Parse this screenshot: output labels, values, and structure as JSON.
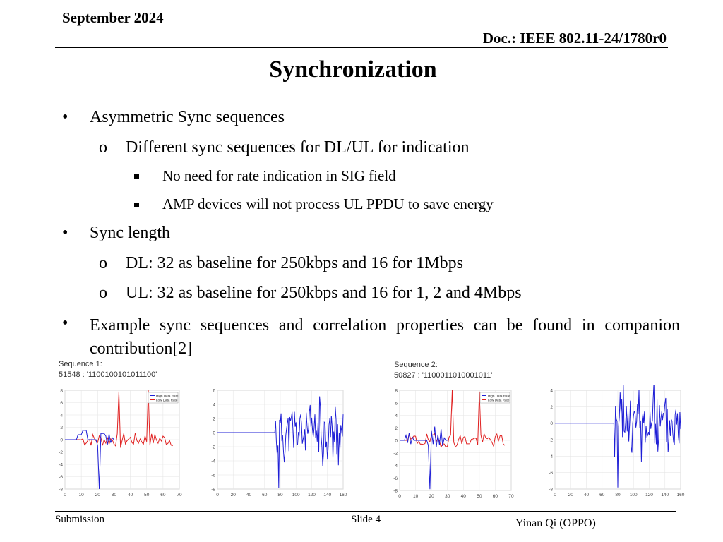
{
  "header": {
    "date": "September 2024",
    "doc": "Doc.: IEEE 802.11-24/1780r0"
  },
  "title": "Synchronization",
  "bullets": {
    "asym": {
      "marker": "•",
      "text": "Asymmetric Sync sequences",
      "sub": {
        "marker": "o",
        "text": "Different sync sequences for DL/UL for indication"
      },
      "subsub": [
        "No need for rate indication in SIG field",
        "AMP devices will not process UL PPDU to save energy"
      ]
    },
    "length": {
      "marker": "•",
      "text": "Sync length",
      "sub": [
        {
          "marker": "o",
          "text": "DL: 32 as baseline for 250kbps and 16 for 1Mbps"
        },
        {
          "marker": "o",
          "text": "UL: 32 as baseline for 250kbps and 16 for 1, 2 and 4Mbps"
        }
      ]
    },
    "example": {
      "marker": "•",
      "text": "Example sync sequences and correlation properties can be found in companion contribution[2]"
    }
  },
  "figures": {
    "seq1": {
      "label": "Sequence 1:",
      "value": "51548 :  '1100100101011100'"
    },
    "seq2": {
      "label": "Sequence 2:",
      "value": "50827 :  '1100011010001011'"
    },
    "legend": {
      "high": "High Data Rate",
      "low": "Low Data Rate"
    },
    "colors": {
      "high": "#1f1fd6",
      "low": "#e02020"
    }
  },
  "chart_data": [
    {
      "type": "line",
      "legend": [
        "High Data Rate",
        "Low Data Rate"
      ],
      "legend_position": "top-right",
      "xlim": [
        0,
        70
      ],
      "ylim": [
        -8,
        8
      ],
      "xticks": [
        "0",
        "10",
        "20",
        "30",
        "40",
        "50",
        "60",
        "70"
      ],
      "yticks": [
        "8",
        "6",
        "4",
        "2",
        "0",
        "-2",
        "-4",
        "-6",
        "-8"
      ]
    },
    {
      "type": "line",
      "xlim": [
        0,
        160
      ],
      "ylim": [
        -8,
        6
      ],
      "xticks": [
        "0",
        "20",
        "40",
        "60",
        "80",
        "100",
        "120",
        "140",
        "160"
      ],
      "yticks": [
        "6",
        "4",
        "2",
        "0",
        "-2",
        "-4",
        "-6",
        "-8"
      ]
    },
    {
      "type": "line",
      "legend": [
        "High Data Rate",
        "Low Data Rate"
      ],
      "legend_position": "top-right",
      "xlim": [
        0,
        70
      ],
      "ylim": [
        -8,
        8
      ],
      "xticks": [
        "0",
        "10",
        "20",
        "30",
        "40",
        "50",
        "60",
        "70"
      ],
      "yticks": [
        "8",
        "6",
        "4",
        "2",
        "0",
        "-2",
        "-4",
        "-6",
        "-8"
      ]
    },
    {
      "type": "line",
      "xlim": [
        0,
        160
      ],
      "ylim": [
        -8,
        4
      ],
      "xticks": [
        "0",
        "20",
        "40",
        "60",
        "80",
        "100",
        "120",
        "140",
        "160"
      ],
      "yticks": [
        "4",
        "2",
        "0",
        "-2",
        "-4",
        "-6",
        "-8"
      ]
    }
  ],
  "footer": {
    "left": "Submission",
    "center": "Slide 4",
    "right": "Yinan Qi (OPPO)"
  }
}
